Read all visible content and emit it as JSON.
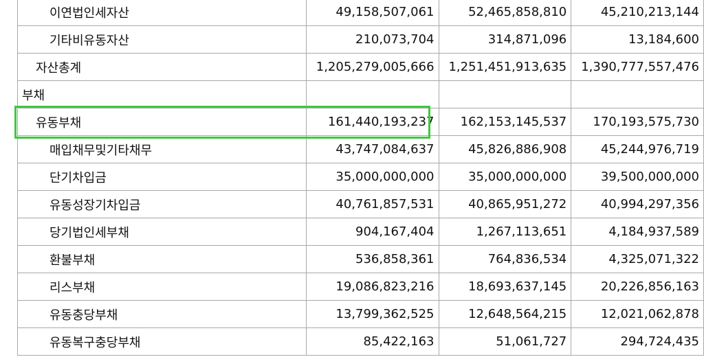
{
  "rows": [
    {
      "label": "이연법인세자산",
      "level": 2,
      "values": [
        "49,158,507,061",
        "52,465,858,810",
        "45,210,213,144"
      ]
    },
    {
      "label": "기타비유동자산",
      "level": 2,
      "values": [
        "210,073,704",
        "314,871,096",
        "13,184,600"
      ]
    },
    {
      "label": "자산총계",
      "level": 1,
      "values": [
        "1,205,279,005,666",
        "1,251,451,913,635",
        "1,390,777,557,476"
      ]
    },
    {
      "label": "부채",
      "level": 0,
      "values": [
        "",
        "",
        ""
      ]
    },
    {
      "label": "유동부채",
      "level": 1,
      "values": [
        "161,440,193,237",
        "162,153,145,537",
        "170,193,575,730"
      ]
    },
    {
      "label": "매입채무및기타채무",
      "level": 2,
      "values": [
        "43,747,084,637",
        "45,826,886,908",
        "45,244,976,719"
      ]
    },
    {
      "label": "단기차입금",
      "level": 2,
      "values": [
        "35,000,000,000",
        "35,000,000,000",
        "39,500,000,000"
      ]
    },
    {
      "label": "유동성장기차입금",
      "level": 2,
      "values": [
        "40,761,857,531",
        "40,865,951,272",
        "40,994,297,356"
      ]
    },
    {
      "label": "당기법인세부채",
      "level": 2,
      "values": [
        "904,167,404",
        "1,267,113,651",
        "4,184,937,589"
      ]
    },
    {
      "label": "환불부채",
      "level": 2,
      "values": [
        "536,858,361",
        "764,836,534",
        "4,325,071,322"
      ]
    },
    {
      "label": "리스부채",
      "level": 2,
      "values": [
        "19,086,823,216",
        "18,693,637,145",
        "20,226,856,163"
      ]
    },
    {
      "label": "유동충당부채",
      "level": 2,
      "values": [
        "13,799,362,525",
        "12,648,564,215",
        "12,021,062,878"
      ]
    },
    {
      "label": "유동복구충당부채",
      "level": 2,
      "values": [
        "85,422,163",
        "51,061,727",
        "294,724,435"
      ]
    }
  ],
  "highlight_color": "#3ec83e"
}
